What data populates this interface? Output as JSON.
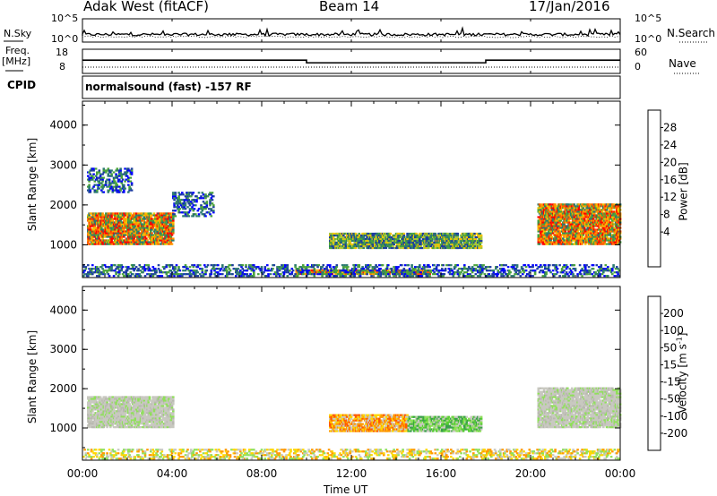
{
  "header": {
    "station": "Adak West (fitACF)",
    "beam": "Beam 14",
    "date": "17/Jan/2016"
  },
  "top_panels": {
    "nsky_label": "N.Sky",
    "nsearch_label": "N.Search",
    "freq_label_line1": "Freq.",
    "freq_label_line2": "[MHz]",
    "nave_label": "Nave",
    "cpid_label": "CPID",
    "cpid_text": "normalsound (fast) -157 RF",
    "nsky_ticks": [
      "10^5",
      "10^0"
    ],
    "nsearch_ticks": [
      "10^5",
      "10^0"
    ],
    "freq_ticks": [
      "18",
      "8"
    ],
    "nave_ticks": [
      "60",
      "0"
    ]
  },
  "chart_data": [
    {
      "type": "line",
      "name": "Frequency / Nave",
      "x_unit": "hours UT",
      "freq_segments": [
        {
          "x": [
            0,
            10
          ],
          "y": 13.5
        },
        {
          "x": [
            10,
            18
          ],
          "y": 12.4
        },
        {
          "x": [
            18,
            24
          ],
          "y": 13.5
        }
      ],
      "freq_ylim": [
        8,
        18
      ]
    },
    {
      "type": "heatmap",
      "name": "Power",
      "ylabel": "Slant Range [km]",
      "yticks": [
        "4000",
        "3000",
        "2000",
        "1000"
      ],
      "ylim": [
        180,
        4600
      ],
      "colorbar": {
        "label": "Power [dB]",
        "ticks": [
          "28",
          "24",
          "20",
          "16",
          "12",
          "8",
          "4"
        ],
        "colors": [
          "#0000ff",
          "#1c3ca0",
          "#2c7a70",
          "#4aa33a",
          "#a8c83a",
          "#f2c400",
          "#ff9900",
          "#ff5a00",
          "#ff0000"
        ]
      },
      "regions": [
        {
          "t": [
            0.2,
            4.0
          ],
          "r": [
            1000,
            1800
          ],
          "level": "high"
        },
        {
          "t": [
            0.2,
            2.2
          ],
          "r": [
            2300,
            2900
          ],
          "level": "low"
        },
        {
          "t": [
            4.0,
            5.8
          ],
          "r": [
            1700,
            2300
          ],
          "level": "low"
        },
        {
          "t": [
            11.0,
            17.8
          ],
          "r": [
            900,
            1300
          ],
          "level": "mid"
        },
        {
          "t": [
            9.5,
            15.5
          ],
          "r": [
            250,
            350
          ],
          "level": "high"
        },
        {
          "t": [
            20.3,
            24.0
          ],
          "r": [
            1000,
            2000
          ],
          "level": "high"
        },
        {
          "t": [
            0.0,
            24.0
          ],
          "r": [
            200,
            500
          ],
          "level": "low"
        }
      ]
    },
    {
      "type": "heatmap",
      "name": "Velocity",
      "ylabel": "Slant Range [km]",
      "yticks": [
        "4000",
        "3000",
        "2000",
        "1000"
      ],
      "ylim": [
        180,
        4600
      ],
      "colorbar": {
        "label": "Velocity [m s^-1]",
        "ticks": [
          "200",
          "100",
          "50",
          "15",
          "-15",
          "-50",
          "-100",
          "-200"
        ],
        "colors": [
          "#2233bb",
          "#3aa14a",
          "#55cc33",
          "#8fe05a",
          "#c8c8c0",
          "#ffd700",
          "#ff9900",
          "#ff5a00",
          "#ff0000"
        ]
      },
      "regions": [
        {
          "t": [
            0.2,
            4.0
          ],
          "r": [
            1000,
            1800
          ],
          "level": "grey"
        },
        {
          "t": [
            11.0,
            14.5
          ],
          "r": [
            900,
            1350
          ],
          "level": "orange"
        },
        {
          "t": [
            14.5,
            17.8
          ],
          "r": [
            900,
            1300
          ],
          "level": "green"
        },
        {
          "t": [
            20.3,
            24.0
          ],
          "r": [
            1000,
            2000
          ],
          "level": "grey"
        },
        {
          "t": [
            0.0,
            24.0
          ],
          "r": [
            200,
            450
          ],
          "level": "yellow"
        }
      ]
    }
  ],
  "xaxis": {
    "label": "Time UT",
    "ticks": [
      "00:00",
      "04:00",
      "08:00",
      "12:00",
      "16:00",
      "20:00",
      "00:00"
    ]
  }
}
